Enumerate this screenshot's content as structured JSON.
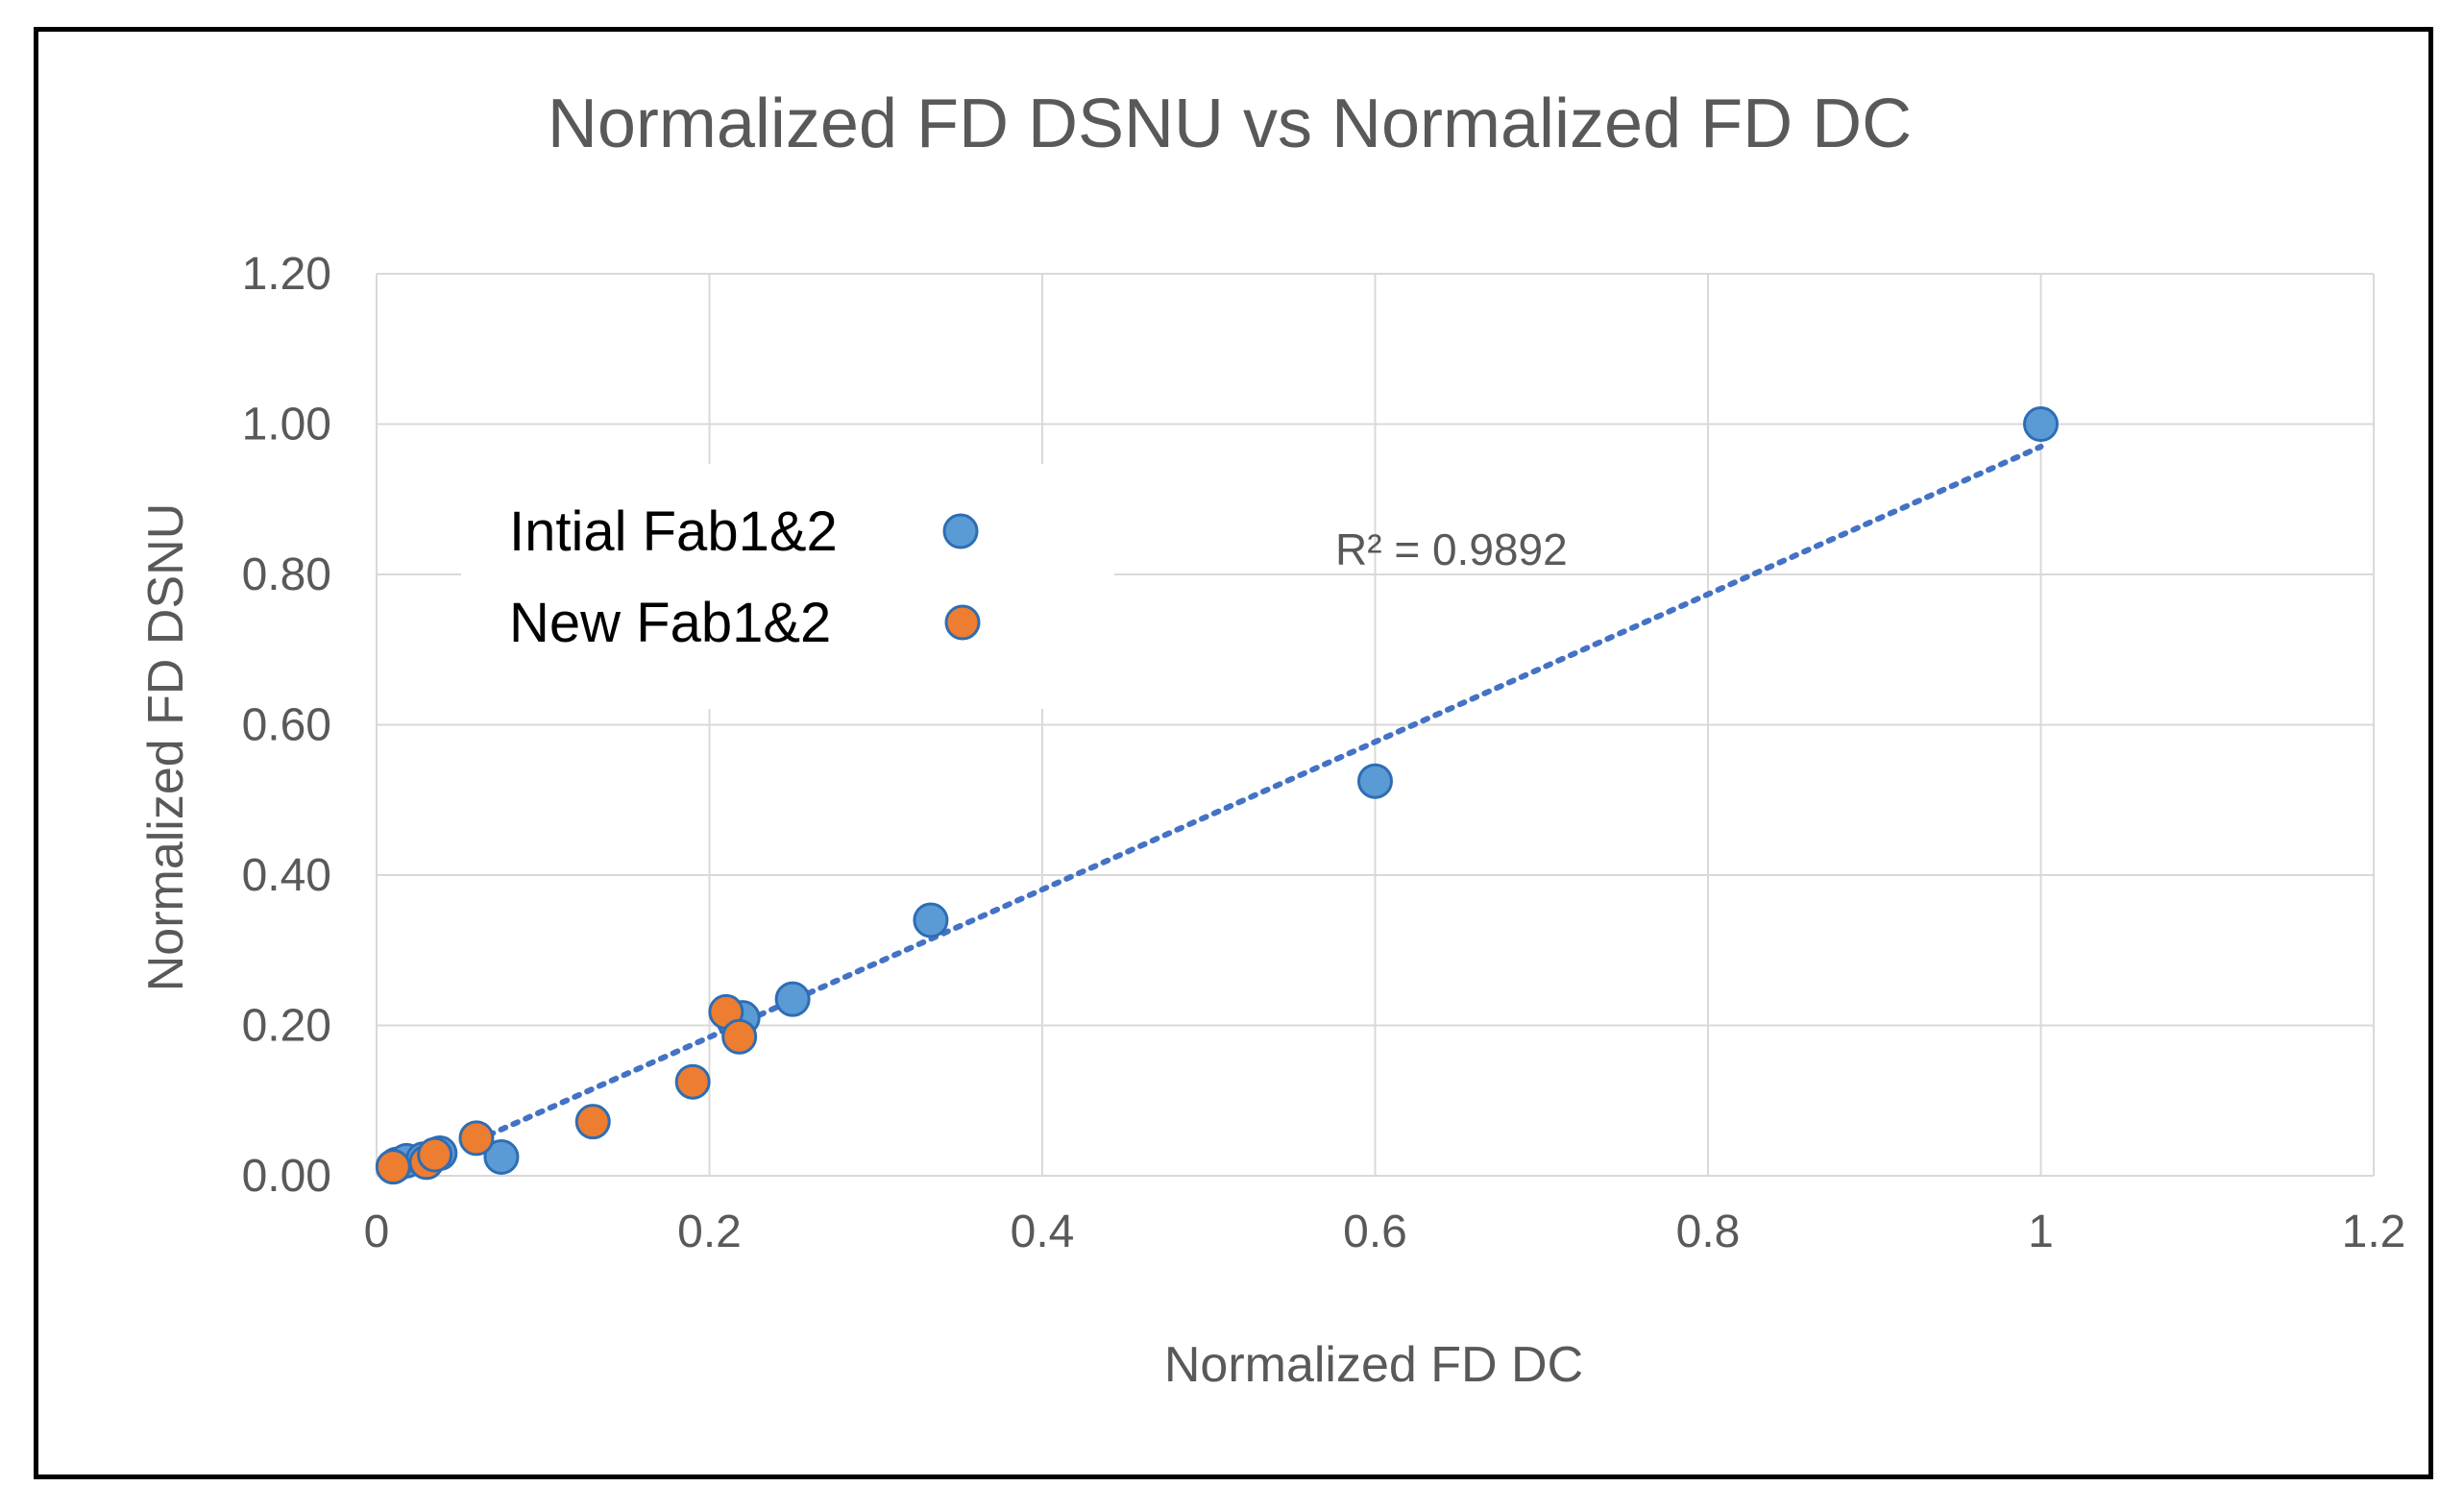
{
  "chart_data": {
    "type": "scatter",
    "title": "Normalized FD DSNU vs Normalized FD DC",
    "xlabel": "Normalized FD DC",
    "ylabel": "Normalized FD DSNU",
    "xlim": [
      0,
      1.2
    ],
    "ylim": [
      0,
      1.2
    ],
    "x_ticks": [
      "0",
      "0.2",
      "0.4",
      "0.6",
      "0.8",
      "1",
      "1.2"
    ],
    "y_ticks": [
      "0.00",
      "0.20",
      "0.40",
      "0.60",
      "0.80",
      "1.00",
      "1.20"
    ],
    "x_tick_values": [
      0,
      0.2,
      0.4,
      0.6,
      0.8,
      1.0,
      1.2
    ],
    "y_tick_values": [
      0,
      0.2,
      0.4,
      0.6,
      0.8,
      1.0,
      1.2
    ],
    "grid": true,
    "legend_position": "top-left",
    "series": [
      {
        "name": "Intial Fab1&2",
        "color": "#5B9BD5",
        "x": [
          0.012,
          0.018,
          0.028,
          0.038,
          0.075,
          0.215,
          0.22,
          0.25,
          0.333,
          0.6,
          1.0
        ],
        "y": [
          0.015,
          0.02,
          0.022,
          0.03,
          0.025,
          0.205,
          0.21,
          0.235,
          0.34,
          0.525,
          1.0
        ]
      },
      {
        "name": "New Fab1&2",
        "color": "#ED7D31",
        "x": [
          0.01,
          0.03,
          0.035,
          0.06,
          0.13,
          0.19,
          0.21,
          0.218
        ],
        "y": [
          0.012,
          0.018,
          0.028,
          0.05,
          0.072,
          0.125,
          0.218,
          0.185
        ]
      }
    ],
    "trendline": {
      "series": "Intial Fab1&2",
      "type": "linear",
      "x_range": [
        0.06,
        1.0
      ],
      "slope": 0.982,
      "intercept": -0.012,
      "color": "#4472C4",
      "label": "R² = 0.9892"
    }
  }
}
